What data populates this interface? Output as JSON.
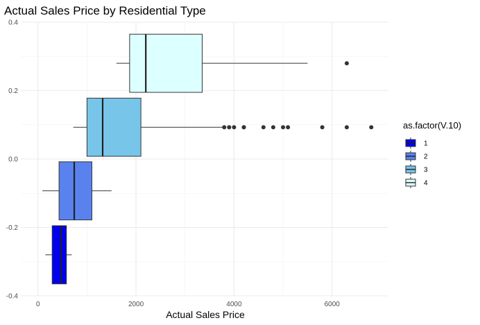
{
  "chart_data": {
    "type": "boxplot",
    "title": "Actual Sales Price by Residential Type",
    "xlabel": "Actual Sales Price",
    "ylabel": "",
    "xlim": [
      -350,
      7150
    ],
    "ylim": [
      -0.4,
      0.4
    ],
    "x_ticks": [
      0,
      2000,
      4000,
      6000
    ],
    "x_tick_labels": [
      "0",
      "2000",
      "4000",
      "6000"
    ],
    "y_ticks": [
      -0.4,
      -0.2,
      0.0,
      0.2,
      0.4
    ],
    "y_tick_labels": [
      "-0.4",
      "-0.2",
      "0.0",
      "0.2",
      "0.4"
    ],
    "grid": true,
    "legend": {
      "title": "as.factor(V.10)",
      "position": "right",
      "entries": [
        "1",
        "2",
        "3",
        "4"
      ]
    },
    "series": [
      {
        "name": "1",
        "color": "#0000ee",
        "y_low": -0.365,
        "y_high": -0.195,
        "min": 150,
        "q1": 290,
        "median": 470,
        "q3": 580,
        "max": 690,
        "outliers": []
      },
      {
        "name": "2",
        "color": "#5a82ee",
        "y_low": -0.178,
        "y_high": -0.008,
        "min": 90,
        "q1": 430,
        "median": 740,
        "q3": 1100,
        "max": 1500,
        "outliers": []
      },
      {
        "name": "3",
        "color": "#78c5ea",
        "y_low": 0.008,
        "y_high": 0.178,
        "min": 720,
        "q1": 1000,
        "median": 1320,
        "q3": 2100,
        "max": 3800,
        "outliers": [
          3800,
          3900,
          4000,
          4200,
          4200,
          4600,
          4800,
          5000,
          5100,
          5800,
          6300,
          6800
        ]
      },
      {
        "name": "4",
        "color": "#dcffff",
        "y_low": 0.195,
        "y_high": 0.365,
        "min": 1600,
        "q1": 1870,
        "median": 2200,
        "q3": 3350,
        "max": 5500,
        "outliers": [
          6300
        ]
      }
    ]
  }
}
